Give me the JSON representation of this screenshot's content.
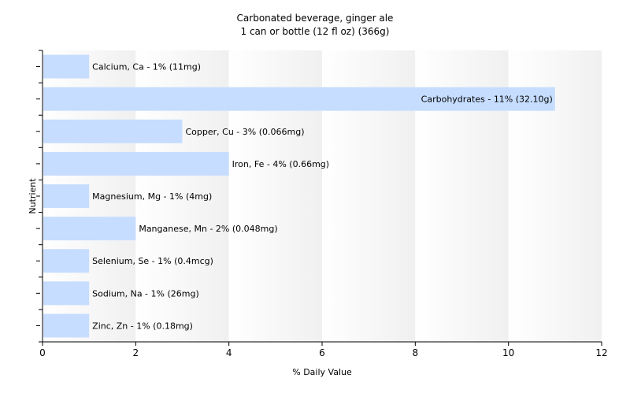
{
  "chart_data": {
    "type": "bar",
    "orientation": "horizontal",
    "title": "Carbonated beverage, ginger ale",
    "subtitle": "1 can or bottle (12 fl oz) (366g)",
    "xlabel": "% Daily Value",
    "ylabel": "Nutrient",
    "xlim": [
      0,
      12
    ],
    "xticks": [
      0,
      2,
      4,
      6,
      8,
      10,
      12
    ],
    "grid": "vertical bands",
    "bar_color": "#c6ddff",
    "categories": [
      "Calcium, Ca",
      "Carbohydrates",
      "Copper, Cu",
      "Iron, Fe",
      "Magnesium, Mg",
      "Manganese, Mn",
      "Selenium, Se",
      "Sodium, Na",
      "Zinc, Zn"
    ],
    "values": [
      1,
      11,
      3,
      4,
      1,
      2,
      1,
      1,
      1
    ],
    "labels": [
      "Calcium, Ca - 1% (11mg)",
      "Carbohydrates - 11% (32.10g)",
      "Copper, Cu - 3% (0.066mg)",
      "Iron, Fe - 4% (0.66mg)",
      "Magnesium, Mg - 1% (4mg)",
      "Manganese, Mn - 2% (0.048mg)",
      "Selenium, Se - 1% (0.4mcg)",
      "Sodium, Na - 1% (26mg)",
      "Zinc, Zn - 1% (0.18mg)"
    ]
  }
}
